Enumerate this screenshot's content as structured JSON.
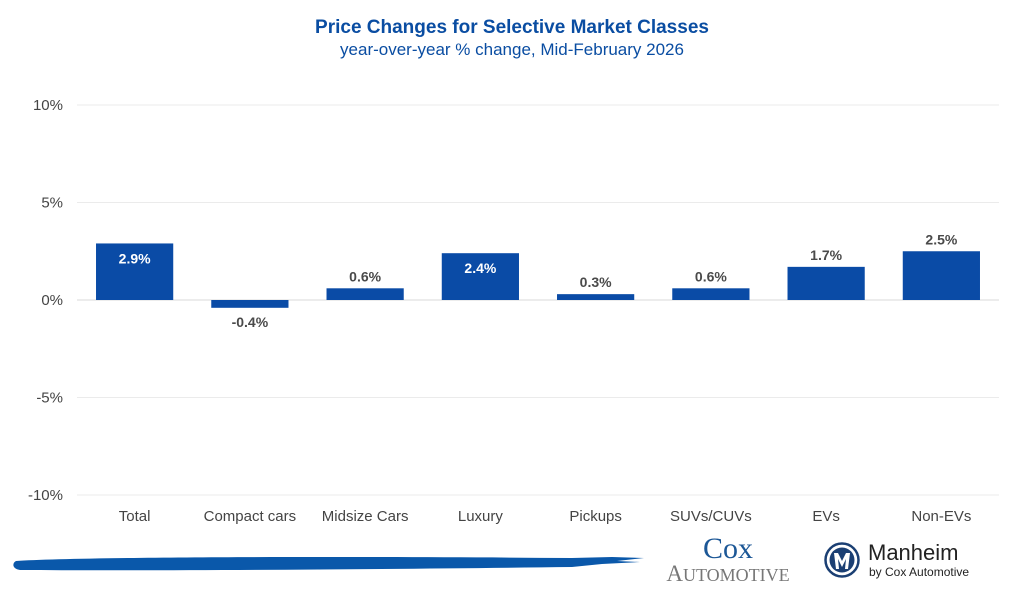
{
  "chart_data": {
    "type": "bar",
    "title": "Price Changes for Selective Market Classes",
    "subtitle": "year-over-year % change, Mid-February 2026",
    "xlabel": "",
    "ylabel": "",
    "categories": [
      "Total",
      "Compact cars",
      "Midsize Cars",
      "Luxury",
      "Pickups",
      "SUVs/CUVs",
      "EVs",
      "Non-EVs"
    ],
    "values": [
      2.9,
      -0.4,
      0.6,
      2.4,
      0.3,
      0.6,
      1.7,
      2.5
    ],
    "data_labels": [
      "2.9%",
      "-0.4%",
      "0.6%",
      "2.4%",
      "0.3%",
      "0.6%",
      "1.7%",
      "2.5%"
    ],
    "label_inside": [
      true,
      false,
      false,
      true,
      false,
      false,
      false,
      false
    ],
    "ylim": [
      -10,
      10
    ],
    "yticks": [
      10,
      5,
      0,
      -5,
      -10
    ],
    "ytick_labels": [
      "10%",
      "5%",
      "0%",
      "-5%",
      "-10%"
    ],
    "grid": true,
    "legend": "none",
    "bar_color": "#0a4ba6"
  },
  "branding": {
    "cox_line1": "Cox",
    "cox_line2": "Automotive",
    "manheim_name": "Manheim",
    "manheim_sub": "by Cox Automotive",
    "brush_color": "#0a58aa"
  }
}
